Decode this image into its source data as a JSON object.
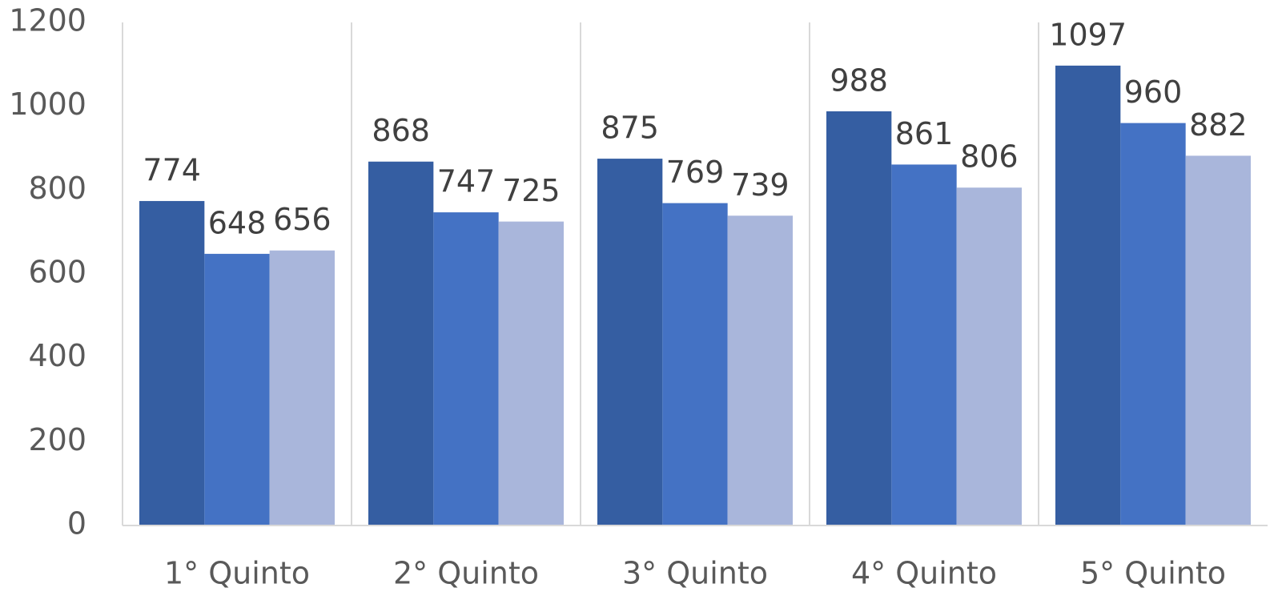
{
  "chart_data": {
    "type": "bar",
    "categories": [
      "1° Quinto",
      "2° Quinto",
      "3° Quinto",
      "4° Quinto",
      "5° Quinto"
    ],
    "series": [
      {
        "color": "#355ea2",
        "values": [
          774,
          868,
          875,
          988,
          1097
        ]
      },
      {
        "color": "#4472c4",
        "values": [
          648,
          747,
          769,
          861,
          960
        ]
      },
      {
        "color": "#a9b6db",
        "values": [
          656,
          725,
          739,
          806,
          882
        ]
      }
    ],
    "ylim": [
      0,
      1200
    ],
    "yticks": [
      0,
      200,
      400,
      600,
      800,
      1000,
      1200
    ],
    "grid": false,
    "category_separators": true
  }
}
